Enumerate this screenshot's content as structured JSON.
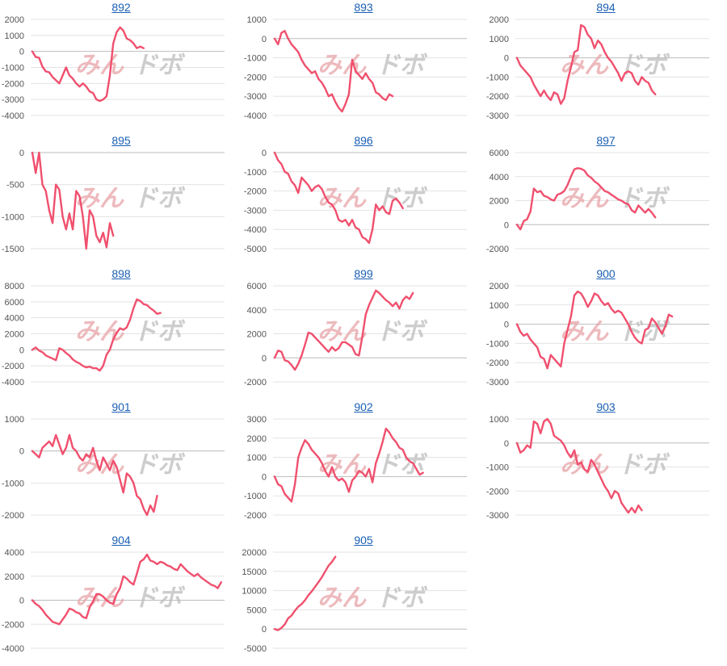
{
  "watermark": {
    "text_a": "みん",
    "text_b": "ドボ"
  },
  "colors": {
    "line": "#f0506e",
    "grid": "#e3e3e3",
    "axis": "#bbbbbb",
    "title": "#1a5fb4",
    "tick": "#555555"
  },
  "chart_data": [
    {
      "type": "line",
      "title": "892",
      "ylim": [
        -4000,
        2000
      ],
      "yticks": [
        2000,
        1000,
        0,
        -1000,
        -2000,
        -3000,
        -4000
      ],
      "values": [
        0,
        -350,
        -400,
        -950,
        -1250,
        -1300,
        -1600,
        -1800,
        -2000,
        -1500,
        -1000,
        -1500,
        -1700,
        -2000,
        -2200,
        -2000,
        -2200,
        -2500,
        -2600,
        -3000,
        -3100,
        -3000,
        -2800,
        -1500,
        500,
        1200,
        1500,
        1300,
        800,
        700,
        500,
        200,
        300,
        200
      ]
    },
    {
      "type": "line",
      "title": "893",
      "ylim": [
        -4000,
        1000
      ],
      "yticks": [
        1000,
        0,
        -1000,
        -2000,
        -3000,
        -4000
      ],
      "values": [
        0,
        -300,
        300,
        400,
        0,
        -300,
        -500,
        -700,
        -1100,
        -1400,
        -1600,
        -1800,
        -1700,
        -2100,
        -2300,
        -2600,
        -3000,
        -2900,
        -3300,
        -3600,
        -3800,
        -3400,
        -2900,
        -1100,
        -1700,
        -1900,
        -2100,
        -1800,
        -2100,
        -2300,
        -2800,
        -2900,
        -3100,
        -3200,
        -2900,
        -3000
      ]
    },
    {
      "type": "line",
      "title": "894",
      "ylim": [
        -3000,
        2000
      ],
      "yticks": [
        2000,
        1000,
        0,
        -1000,
        -2000,
        -3000
      ],
      "values": [
        0,
        -400,
        -600,
        -800,
        -1000,
        -1400,
        -1700,
        -2000,
        -1700,
        -2000,
        -2200,
        -1800,
        -1900,
        -2400,
        -2100,
        -1200,
        -500,
        300,
        400,
        1700,
        1600,
        1200,
        1000,
        500,
        900,
        700,
        300,
        0,
        -200,
        -500,
        -800,
        -1200,
        -800,
        -700,
        -800,
        -1200,
        -1400,
        -1000,
        -1200,
        -1300,
        -1700,
        -1900
      ]
    },
    {
      "type": "line",
      "title": "895",
      "ylim": [
        -1500,
        0
      ],
      "yticks": [
        0,
        -500,
        -1000,
        -1500
      ],
      "values": [
        0,
        -320,
        0,
        -500,
        -600,
        -900,
        -1100,
        -500,
        -580,
        -1000,
        -1200,
        -950,
        -1200,
        -600,
        -680,
        -1000,
        -1500,
        -900,
        -1000,
        -1300,
        -1400,
        -1250,
        -1480,
        -1100,
        -1300
      ]
    },
    {
      "type": "line",
      "title": "896",
      "ylim": [
        -5000,
        0
      ],
      "yticks": [
        0,
        -1000,
        -2000,
        -3000,
        -4000,
        -5000
      ],
      "values": [
        0,
        -400,
        -600,
        -1000,
        -1100,
        -1500,
        -1700,
        -2100,
        -1300,
        -1500,
        -1700,
        -2000,
        -1800,
        -1700,
        -1900,
        -2300,
        -2600,
        -2700,
        -3000,
        -3500,
        -3600,
        -3500,
        -3800,
        -3500,
        -3900,
        -4000,
        -4400,
        -4500,
        -4700,
        -4000,
        -2700,
        -3000,
        -2800,
        -3100,
        -3200,
        -2500,
        -2400,
        -2600,
        -2900
      ]
    },
    {
      "type": "line",
      "title": "897",
      "ylim": [
        -2000,
        6000
      ],
      "yticks": [
        6000,
        4000,
        2000,
        0,
        -2000
      ],
      "values": [
        0,
        -400,
        300,
        450,
        1100,
        3000,
        2700,
        2800,
        2400,
        2300,
        2100,
        2000,
        2500,
        2600,
        2800,
        3300,
        4000,
        4600,
        4700,
        4650,
        4500,
        4100,
        3900,
        3600,
        3400,
        3100,
        2800,
        2700,
        2500,
        2300,
        2100,
        2000,
        1800,
        1700,
        1200,
        1000,
        1600,
        1300,
        1000,
        1300,
        1000,
        600
      ]
    },
    {
      "type": "line",
      "title": "898",
      "ylim": [
        -4000,
        8000
      ],
      "yticks": [
        8000,
        6000,
        4000,
        2000,
        0,
        -2000,
        -4000
      ],
      "values": [
        0,
        300,
        -100,
        -300,
        -700,
        -900,
        -1100,
        -1300,
        200,
        0,
        -400,
        -700,
        -1200,
        -1500,
        -1700,
        -2000,
        -2200,
        -2100,
        -2300,
        -2300,
        -2600,
        -2000,
        -600,
        0,
        1300,
        2100,
        2700,
        2500,
        2800,
        3800,
        5200,
        6300,
        6100,
        5700,
        5600,
        5200,
        4900,
        4500,
        4600
      ]
    },
    {
      "type": "line",
      "title": "899",
      "ylim": [
        -2000,
        6000
      ],
      "yticks": [
        6000,
        4000,
        2000,
        0,
        -2000
      ],
      "values": [
        0,
        600,
        500,
        -200,
        -300,
        -600,
        -1000,
        -500,
        200,
        1100,
        2100,
        2000,
        1700,
        1400,
        1100,
        800,
        500,
        900,
        600,
        800,
        1300,
        1300,
        1100,
        900,
        300,
        200,
        1800,
        3600,
        4400,
        5000,
        5600,
        5400,
        5100,
        4800,
        4600,
        4300,
        4600,
        4100,
        4800,
        5100,
        4900,
        5400
      ]
    },
    {
      "type": "line",
      "title": "900",
      "ylim": [
        -3000,
        2000
      ],
      "yticks": [
        2000,
        1000,
        0,
        -1000,
        -2000,
        -3000
      ],
      "values": [
        0,
        -400,
        -600,
        -500,
        -800,
        -1000,
        -1200,
        -1700,
        -1800,
        -2300,
        -1600,
        -1800,
        -2000,
        -2200,
        -1000,
        -300,
        400,
        1500,
        1700,
        1600,
        1300,
        900,
        1200,
        1600,
        1500,
        1200,
        1000,
        1100,
        800,
        600,
        700,
        600,
        300,
        0,
        -400,
        -700,
        -900,
        -1000,
        -300,
        -200,
        300,
        100,
        -200,
        -500,
        -100,
        500,
        400
      ]
    },
    {
      "type": "line",
      "title": "901",
      "ylim": [
        -2000,
        1000
      ],
      "yticks": [
        1000,
        0,
        -1000,
        -2000
      ],
      "values": [
        0,
        -100,
        -200,
        100,
        200,
        300,
        150,
        500,
        200,
        -100,
        100,
        500,
        100,
        0,
        -200,
        -300,
        -100,
        -200,
        100,
        -300,
        -600,
        -200,
        -400,
        -600,
        -300,
        -500,
        -900,
        -1300,
        -700,
        -800,
        -1000,
        -1400,
        -1500,
        -1800,
        -2000,
        -1700,
        -1900,
        -1400
      ]
    },
    {
      "type": "line",
      "title": "902",
      "ylim": [
        -2000,
        3000
      ],
      "yticks": [
        3000,
        2000,
        1000,
        0,
        -1000,
        -2000
      ],
      "values": [
        0,
        -400,
        -500,
        -900,
        -1100,
        -1300,
        -400,
        1000,
        1500,
        1900,
        1700,
        1400,
        1200,
        1000,
        700,
        300,
        0,
        500,
        0,
        -200,
        -100,
        -300,
        -800,
        -200,
        0,
        300,
        200,
        0,
        400,
        -300,
        700,
        1200,
        1800,
        2500,
        2300,
        2000,
        1800,
        1500,
        1400,
        1000,
        800,
        700,
        400,
        100,
        200
      ]
    },
    {
      "type": "line",
      "title": "903",
      "ylim": [
        -3000,
        1000
      ],
      "yticks": [
        1000,
        0,
        -1000,
        -2000,
        -3000
      ],
      "values": [
        0,
        -400,
        -300,
        -100,
        -200,
        900,
        800,
        400,
        900,
        1000,
        800,
        300,
        200,
        100,
        -100,
        -400,
        -600,
        -300,
        -900,
        -800,
        -1100,
        -1200,
        -700,
        -900,
        -1200,
        -1500,
        -1800,
        -2000,
        -2300,
        -2000,
        -2100,
        -2500,
        -2700,
        -2900,
        -2700,
        -2900,
        -2600,
        -2800
      ]
    },
    {
      "type": "line",
      "title": "904",
      "ylim": [
        -4000,
        4000
      ],
      "yticks": [
        4000,
        2000,
        0,
        -2000,
        -4000
      ],
      "values": [
        0,
        -300,
        -500,
        -800,
        -1200,
        -1500,
        -1800,
        -1900,
        -2000,
        -1600,
        -1200,
        -700,
        -800,
        -1000,
        -1100,
        -1400,
        -1500,
        -600,
        -100,
        500,
        500,
        300,
        0,
        -200,
        -300,
        500,
        1000,
        2000,
        1800,
        1500,
        1300,
        2200,
        3200,
        3400,
        3800,
        3300,
        3200,
        3000,
        3200,
        3100,
        2900,
        2800,
        2600,
        2500,
        3000,
        2700,
        2400,
        2200,
        2000,
        2200,
        1900,
        1700,
        1500,
        1300,
        1200,
        1000,
        1500
      ]
    },
    {
      "type": "line",
      "title": "905",
      "ylim": [
        -5000,
        20000
      ],
      "yticks": [
        20000,
        15000,
        10000,
        5000,
        0,
        -5000
      ],
      "values": [
        0,
        -300,
        300,
        1200,
        2800,
        3500,
        4800,
        5800,
        6500,
        7500,
        8800,
        9800,
        11000,
        12200,
        13500,
        15000,
        16500,
        17500,
        18800
      ]
    }
  ]
}
